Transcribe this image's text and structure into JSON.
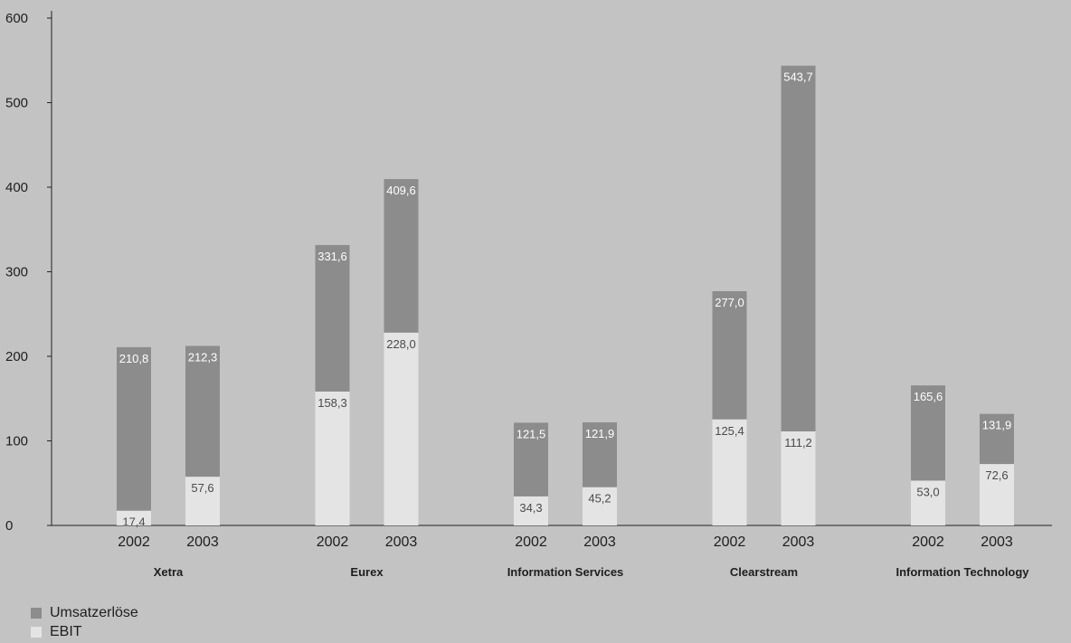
{
  "chart_data": {
    "type": "bar",
    "stacking": "overlay",
    "ylim": [
      0,
      600
    ],
    "yticks": [
      "0",
      "100",
      "200",
      "300",
      "400",
      "500",
      "600"
    ],
    "grid": false,
    "groups": [
      {
        "name": "Xetra",
        "years": [
          "2002",
          "2003"
        ],
        "umsatz": [
          210.8,
          212.3
        ],
        "ebit": [
          17.4,
          57.6
        ],
        "umsatz_labels": [
          "210,8",
          "212,3"
        ],
        "ebit_labels": [
          "17,4",
          "57,6"
        ]
      },
      {
        "name": "Eurex",
        "years": [
          "2002",
          "2003"
        ],
        "umsatz": [
          331.6,
          409.6
        ],
        "ebit": [
          158.3,
          228.0
        ],
        "umsatz_labels": [
          "331,6",
          "409,6"
        ],
        "ebit_labels": [
          "158,3",
          "228,0"
        ]
      },
      {
        "name": "Information Services",
        "years": [
          "2002",
          "2003"
        ],
        "umsatz": [
          121.5,
          121.9
        ],
        "ebit": [
          34.3,
          45.2
        ],
        "umsatz_labels": [
          "121,5",
          "121,9"
        ],
        "ebit_labels": [
          "34,3",
          "45,2"
        ]
      },
      {
        "name": "Clearstream",
        "years": [
          "2002",
          "2003"
        ],
        "umsatz": [
          277.0,
          543.7
        ],
        "ebit": [
          125.4,
          111.2
        ],
        "umsatz_labels": [
          "277,0",
          "543,7"
        ],
        "ebit_labels": [
          "125,4",
          "111,2"
        ]
      },
      {
        "name": "Information Technology",
        "years": [
          "2002",
          "2003"
        ],
        "umsatz": [
          165.6,
          131.9
        ],
        "ebit": [
          53.0,
          72.6
        ],
        "umsatz_labels": [
          "165,6",
          "131,9"
        ],
        "ebit_labels": [
          "53,0",
          "72,6"
        ]
      }
    ],
    "series": [
      {
        "name": "Umsatzerlöse",
        "color": "#8c8c8c"
      },
      {
        "name": "EBIT",
        "color": "#e4e4e4"
      }
    ],
    "legend_position": "bottom-left"
  }
}
